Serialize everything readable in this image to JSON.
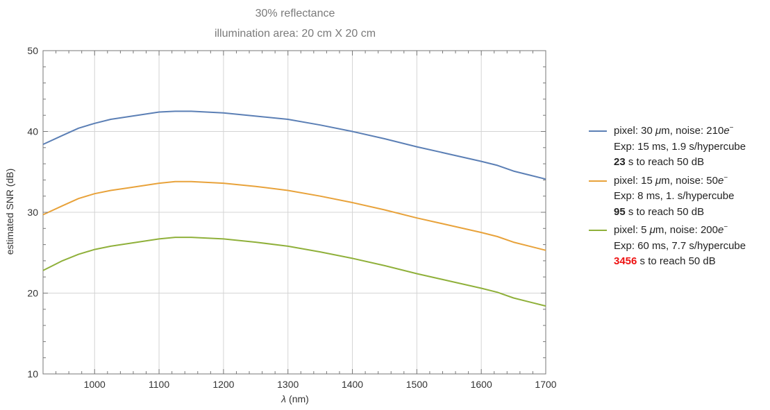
{
  "chart_data": {
    "type": "line",
    "title": "30% reflectance",
    "subtitle": "illumination area: 20 cm X 20 cm",
    "xlabel_symbol": "λ",
    "xlabel_unit": "(nm)",
    "ylabel": "estimated SNR (dB)",
    "xlim": [
      920,
      1700
    ],
    "ylim": [
      10,
      50
    ],
    "x_ticks": [
      1000,
      1100,
      1200,
      1300,
      1400,
      1500,
      1600,
      1700
    ],
    "y_ticks": [
      10,
      20,
      30,
      40,
      50
    ],
    "grid": true,
    "legend_position": "right",
    "x": [
      920,
      950,
      975,
      1000,
      1025,
      1050,
      1075,
      1100,
      1125,
      1150,
      1200,
      1250,
      1300,
      1350,
      1400,
      1450,
      1500,
      1550,
      1600,
      1625,
      1650,
      1700
    ],
    "series": [
      {
        "color": "#5b7fb5",
        "values": [
          38.4,
          39.5,
          40.4,
          41.0,
          41.5,
          41.8,
          42.1,
          42.4,
          42.5,
          42.5,
          42.3,
          41.9,
          41.5,
          40.8,
          40.0,
          39.1,
          38.1,
          37.2,
          36.3,
          35.8,
          35.1,
          34.1
        ],
        "legend": {
          "line1_prefix": "pixel: 30 ",
          "line1_mu": "μ",
          "line1_mid": "m, noise: 210",
          "line1_e": "e",
          "line1_sup": "−",
          "line2": "Exp: 15 ms, 1.9 s/hypercube",
          "line3_bold": "23",
          "line3_rest": " s to reach 50 dB"
        }
      },
      {
        "color": "#e8a23a",
        "values": [
          29.7,
          30.8,
          31.7,
          32.3,
          32.7,
          33.0,
          33.3,
          33.6,
          33.8,
          33.8,
          33.6,
          33.2,
          32.7,
          32.0,
          31.2,
          30.3,
          29.3,
          28.4,
          27.5,
          27.0,
          26.3,
          25.3
        ],
        "legend": {
          "line1_prefix": "pixel: 15 ",
          "line1_mu": "μ",
          "line1_mid": "m, noise: 50",
          "line1_e": "e",
          "line1_sup": "−",
          "line2": "Exp: 8 ms, 1. s/hypercube",
          "line3_bold": "95",
          "line3_rest": " s to reach 50 dB"
        }
      },
      {
        "color": "#8fb03a",
        "values": [
          22.8,
          24.0,
          24.8,
          25.4,
          25.8,
          26.1,
          26.4,
          26.7,
          26.9,
          26.9,
          26.7,
          26.3,
          25.8,
          25.1,
          24.3,
          23.4,
          22.4,
          21.5,
          20.6,
          20.1,
          19.4,
          18.4
        ],
        "legend": {
          "line1_prefix": "pixel: 5 ",
          "line1_mu": "μ",
          "line1_mid": "m, noise: 200",
          "line1_e": "e",
          "line1_sup": "−",
          "line2": "Exp: 60 ms, 7.7 s/hypercube",
          "line3_bold": "3456",
          "line3_rest": " s to reach 50 dB",
          "line3_bold_color": "#ee1111"
        }
      }
    ]
  }
}
